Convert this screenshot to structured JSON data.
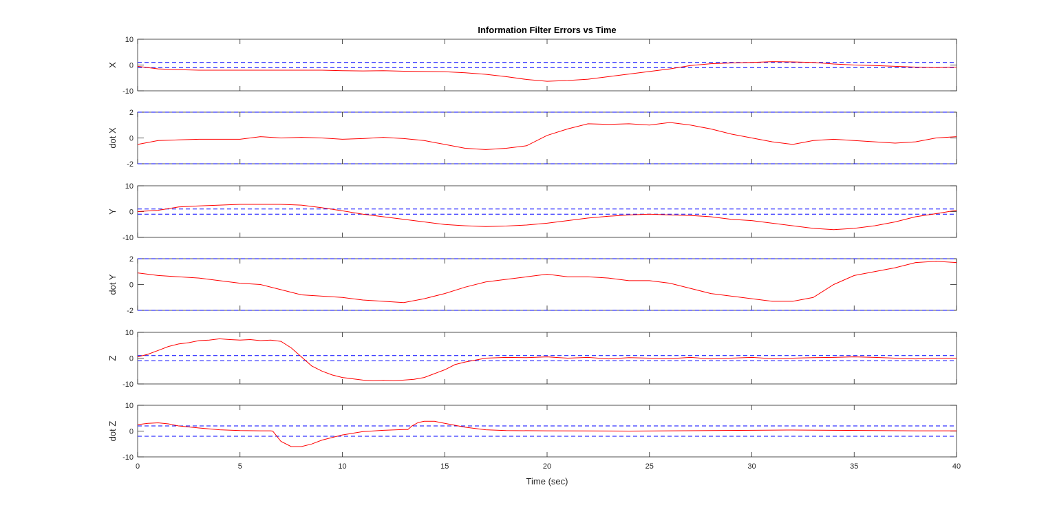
{
  "chart_data": {
    "type": "line",
    "title": "Information Filter Errors vs Time",
    "xlabel": "Time (sec)",
    "xlim": [
      0,
      40
    ],
    "xticks": [
      0,
      5,
      10,
      15,
      20,
      25,
      30,
      35,
      40
    ],
    "colors": {
      "error": "#ff0000",
      "bound": "#0000ff",
      "axes": "#262626"
    },
    "grid": false,
    "subplots": [
      {
        "ylabel": "X",
        "ylim": [
          -10,
          10
        ],
        "yticks": [
          -10,
          0,
          10
        ],
        "bounds": [
          1,
          -1
        ],
        "x": [
          0,
          1,
          2,
          3,
          4,
          5,
          6,
          7,
          8,
          9,
          10,
          11,
          12,
          13,
          14,
          15,
          16,
          17,
          18,
          19,
          20,
          21,
          22,
          23,
          24,
          25,
          26,
          27,
          28,
          29,
          30,
          31,
          32,
          33,
          34,
          35,
          36,
          37,
          38,
          39,
          40
        ],
        "y": [
          -0.5,
          -1.5,
          -1.8,
          -2.0,
          -2.0,
          -2.0,
          -2.0,
          -2.0,
          -2.0,
          -2.0,
          -2.2,
          -2.3,
          -2.2,
          -2.4,
          -2.5,
          -2.6,
          -3.0,
          -3.6,
          -4.5,
          -5.6,
          -6.3,
          -6.0,
          -5.5,
          -4.5,
          -3.5,
          -2.5,
          -1.5,
          -0.2,
          0.5,
          0.8,
          1.0,
          1.3,
          1.2,
          1.0,
          0.4,
          0.0,
          -0.2,
          -0.5,
          -0.8,
          -1.0,
          -0.8
        ]
      },
      {
        "ylabel": "dot X",
        "ylim": [
          -2,
          2
        ],
        "yticks": [
          -2,
          0,
          2
        ],
        "bounds": [
          2,
          -2
        ],
        "x": [
          0,
          1,
          2,
          3,
          4,
          5,
          6,
          7,
          8,
          9,
          10,
          11,
          12,
          13,
          14,
          15,
          16,
          17,
          18,
          19,
          20,
          21,
          22,
          23,
          24,
          25,
          26,
          27,
          28,
          29,
          30,
          31,
          32,
          33,
          34,
          35,
          36,
          37,
          38,
          39,
          40
        ],
        "y": [
          -0.5,
          -0.2,
          -0.15,
          -0.1,
          -0.1,
          -0.1,
          0.1,
          0.0,
          0.05,
          0.0,
          -0.1,
          -0.05,
          0.05,
          -0.05,
          -0.2,
          -0.5,
          -0.8,
          -0.9,
          -0.8,
          -0.6,
          0.2,
          0.7,
          1.1,
          1.05,
          1.1,
          1.0,
          1.2,
          1.0,
          0.7,
          0.3,
          0.0,
          -0.3,
          -0.5,
          -0.2,
          -0.1,
          -0.2,
          -0.3,
          -0.4,
          -0.3,
          0.0,
          0.1
        ]
      },
      {
        "ylabel": "Y",
        "ylim": [
          -10,
          10
        ],
        "yticks": [
          -10,
          0,
          10
        ],
        "bounds": [
          1,
          -1
        ],
        "x": [
          0,
          1,
          2,
          3,
          4,
          5,
          6,
          7,
          8,
          9,
          10,
          11,
          12,
          13,
          14,
          15,
          16,
          17,
          18,
          19,
          20,
          21,
          22,
          23,
          24,
          25,
          26,
          27,
          28,
          29,
          30,
          31,
          32,
          33,
          34,
          35,
          36,
          37,
          38,
          39,
          40
        ],
        "y": [
          0.0,
          0.5,
          1.8,
          2.2,
          2.5,
          2.8,
          2.8,
          2.8,
          2.5,
          1.5,
          0.3,
          -1.0,
          -2.0,
          -3.0,
          -4.0,
          -5.0,
          -5.5,
          -5.8,
          -5.6,
          -5.2,
          -4.5,
          -3.5,
          -2.5,
          -1.8,
          -1.3,
          -1.0,
          -1.3,
          -1.5,
          -2.0,
          -3.0,
          -3.5,
          -4.5,
          -5.5,
          -6.5,
          -7.0,
          -6.5,
          -5.5,
          -4.0,
          -2.0,
          -0.8,
          0.5
        ]
      },
      {
        "ylabel": "dot Y",
        "ylim": [
          -2,
          2
        ],
        "yticks": [
          -2,
          0,
          2
        ],
        "bounds": [
          2,
          -2
        ],
        "x": [
          0,
          1,
          2,
          3,
          4,
          5,
          6,
          7,
          8,
          9,
          10,
          11,
          12,
          13,
          14,
          15,
          16,
          17,
          18,
          19,
          20,
          21,
          22,
          23,
          24,
          25,
          26,
          27,
          28,
          29,
          30,
          31,
          32,
          33,
          34,
          35,
          36,
          37,
          38,
          39,
          40
        ],
        "y": [
          0.9,
          0.7,
          0.6,
          0.5,
          0.3,
          0.1,
          0.0,
          -0.4,
          -0.8,
          -0.9,
          -1.0,
          -1.2,
          -1.3,
          -1.4,
          -1.1,
          -0.7,
          -0.2,
          0.2,
          0.4,
          0.6,
          0.8,
          0.6,
          0.6,
          0.5,
          0.3,
          0.3,
          0.1,
          -0.3,
          -0.7,
          -0.9,
          -1.1,
          -1.3,
          -1.3,
          -1.0,
          0.0,
          0.7,
          1.0,
          1.3,
          1.7,
          1.8,
          1.7
        ]
      },
      {
        "ylabel": "Z",
        "ylim": [
          -10,
          10
        ],
        "yticks": [
          -10,
          0,
          10
        ],
        "bounds": [
          1,
          -1
        ],
        "x": [
          0,
          0.5,
          1,
          1.5,
          2,
          2.5,
          3,
          3.5,
          4,
          4.5,
          5,
          5.5,
          6,
          6.5,
          7,
          7.5,
          8,
          8.5,
          9,
          9.5,
          10,
          10.5,
          11,
          11.5,
          12,
          12.5,
          13,
          13.5,
          14,
          14.5,
          15,
          15.5,
          16,
          17,
          18,
          19,
          20,
          21,
          22,
          23,
          24,
          25,
          26,
          27,
          28,
          29,
          30,
          31,
          32,
          33,
          34,
          35,
          36,
          37,
          38,
          39,
          40
        ],
        "y": [
          0.5,
          1.5,
          3.0,
          4.5,
          5.5,
          6.0,
          6.8,
          7.0,
          7.5,
          7.2,
          7.0,
          7.2,
          6.8,
          7.0,
          6.5,
          4.0,
          0.5,
          -3.0,
          -5.0,
          -6.5,
          -7.5,
          -8.0,
          -8.5,
          -8.8,
          -8.6,
          -8.8,
          -8.5,
          -8.2,
          -7.5,
          -6.0,
          -4.5,
          -2.5,
          -1.5,
          0.0,
          0.3,
          0.2,
          0.5,
          0.0,
          0.3,
          -0.3,
          0.2,
          0.0,
          -0.2,
          0.3,
          -0.3,
          0.0,
          0.3,
          -0.2,
          0.0,
          0.2,
          0.3,
          0.5,
          0.3,
          0.0,
          -0.3,
          0.0,
          0.0
        ]
      },
      {
        "ylabel": "dot Z",
        "ylim": [
          -10,
          10
        ],
        "yticks": [
          -10,
          0,
          10
        ],
        "bounds": [
          2,
          -2
        ],
        "x": [
          0,
          0.5,
          1,
          1.5,
          2,
          3,
          4,
          5,
          6,
          6.5,
          6.6,
          7,
          7.5,
          8,
          8.5,
          9,
          10,
          11,
          12,
          13,
          13.2,
          13.4,
          13.7,
          14,
          14.5,
          15,
          16,
          17,
          18,
          20,
          22,
          24,
          26,
          28,
          30,
          32,
          34,
          36,
          38,
          40
        ],
        "y": [
          2.5,
          3.0,
          3.2,
          2.8,
          2.0,
          1.2,
          0.5,
          0.2,
          0.1,
          0.1,
          0.0,
          -4.0,
          -6.0,
          -6.0,
          -5.0,
          -3.5,
          -1.5,
          -0.2,
          0.3,
          0.6,
          0.6,
          2.0,
          3.3,
          3.8,
          3.8,
          3.0,
          1.5,
          0.5,
          0.2,
          0.1,
          0.05,
          0.0,
          0.1,
          0.2,
          0.3,
          0.4,
          0.3,
          0.2,
          0.1,
          0.1
        ]
      }
    ]
  }
}
